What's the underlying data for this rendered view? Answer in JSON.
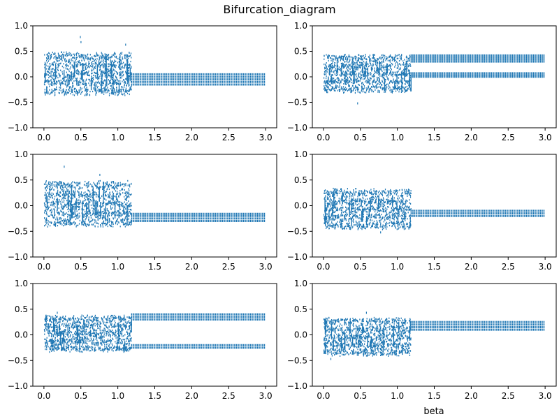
{
  "figure": {
    "title": "Bifurcation_diagram",
    "xlabel": "beta",
    "series_color": "#1f77b4"
  },
  "chart_data": [
    {
      "type": "scatter",
      "panel": "top-left",
      "xlim": [
        -0.15,
        3.15
      ],
      "ylim": [
        -1.0,
        1.0
      ],
      "xticks": [
        "0.0",
        "0.5",
        "1.0",
        "1.5",
        "2.0",
        "2.5",
        "3.0"
      ],
      "yticks": [
        "−1.0",
        "−0.5",
        "0.0",
        "0.5",
        "1.0"
      ],
      "chaotic_range": [
        0.0,
        1.18
      ],
      "chaotic_bounds": [
        -0.35,
        0.5
      ],
      "chaotic_outliers": [
        0.8,
        0.7,
        0.65
      ],
      "periodic_levels": [
        -0.15,
        -0.1,
        -0.05,
        0.0,
        0.05
      ],
      "periodic_range": [
        1.18,
        3.0
      ]
    },
    {
      "type": "scatter",
      "panel": "top-right",
      "xlim": [
        -0.15,
        3.15
      ],
      "ylim": [
        -1.0,
        1.0
      ],
      "xticks": [
        "0.0",
        "0.5",
        "1.0",
        "1.5",
        "2.0",
        "2.5",
        "3.0"
      ],
      "yticks": [
        "−1.0",
        "−0.5",
        "0.0",
        "0.5",
        "1.0"
      ],
      "chaotic_range": [
        0.0,
        1.18
      ],
      "chaotic_bounds": [
        -0.3,
        0.45
      ],
      "chaotic_outliers": [
        -0.5,
        0.3
      ],
      "periodic_levels": [
        0.0,
        0.03,
        0.07,
        0.3,
        0.34,
        0.38,
        0.42
      ],
      "periodic_range": [
        1.18,
        3.0
      ]
    },
    {
      "type": "scatter",
      "panel": "middle-left",
      "xlim": [
        -0.15,
        3.15
      ],
      "ylim": [
        -1.0,
        1.0
      ],
      "xticks": [
        "0.0",
        "0.5",
        "1.0",
        "1.5",
        "2.0",
        "2.5",
        "3.0"
      ],
      "yticks": [
        "−1.0",
        "−0.5",
        "0.0",
        "0.5",
        "1.0"
      ],
      "chaotic_range": [
        0.0,
        1.18
      ],
      "chaotic_bounds": [
        -0.4,
        0.5
      ],
      "chaotic_outliers": [
        0.78,
        0.62
      ],
      "periodic_levels": [
        -0.3,
        -0.25,
        -0.2,
        -0.16
      ],
      "periodic_range": [
        1.18,
        3.0
      ]
    },
    {
      "type": "scatter",
      "panel": "middle-right",
      "xlim": [
        -0.15,
        3.15
      ],
      "ylim": [
        -1.0,
        1.0
      ],
      "xticks": [
        "0.0",
        "0.5",
        "1.0",
        "1.5",
        "2.0",
        "2.5",
        "3.0"
      ],
      "yticks": [
        "−1.0",
        "−0.5",
        "0.0",
        "0.5",
        "1.0"
      ],
      "chaotic_range": [
        0.0,
        1.18
      ],
      "chaotic_bounds": [
        -0.45,
        0.35
      ],
      "chaotic_outliers": [
        -0.5
      ],
      "periodic_levels": [
        -0.2,
        -0.15,
        -0.1
      ],
      "periodic_range": [
        1.18,
        3.0
      ]
    },
    {
      "type": "scatter",
      "panel": "bottom-left",
      "xlim": [
        -0.15,
        3.15
      ],
      "ylim": [
        -1.0,
        1.0
      ],
      "xticks": [
        "0.0",
        "0.5",
        "1.0",
        "1.5",
        "2.0",
        "2.5",
        "3.0"
      ],
      "yticks": [
        "−1.0",
        "−0.5",
        "0.0",
        "0.5",
        "1.0"
      ],
      "chaotic_range": [
        0.0,
        1.18
      ],
      "chaotic_bounds": [
        -0.32,
        0.4
      ],
      "chaotic_outliers": [
        0.45
      ],
      "periodic_levels": [
        -0.25,
        -0.2,
        0.3,
        0.35,
        0.4
      ],
      "periodic_range": [
        1.18,
        3.0
      ]
    },
    {
      "type": "scatter",
      "panel": "bottom-right",
      "xlim": [
        -0.15,
        3.15
      ],
      "ylim": [
        -1.0,
        1.0
      ],
      "xticks": [
        "0.0",
        "0.5",
        "1.0",
        "1.5",
        "2.0",
        "2.5",
        "3.0"
      ],
      "yticks": [
        "−1.0",
        "−0.5",
        "0.0",
        "0.5",
        "1.0"
      ],
      "chaotic_range": [
        0.0,
        1.18
      ],
      "chaotic_bounds": [
        -0.4,
        0.35
      ],
      "chaotic_outliers": [
        0.45,
        -0.45
      ],
      "periodic_levels": [
        0.1,
        0.15,
        0.2,
        0.25
      ],
      "periodic_range": [
        1.18,
        3.0
      ]
    }
  ]
}
